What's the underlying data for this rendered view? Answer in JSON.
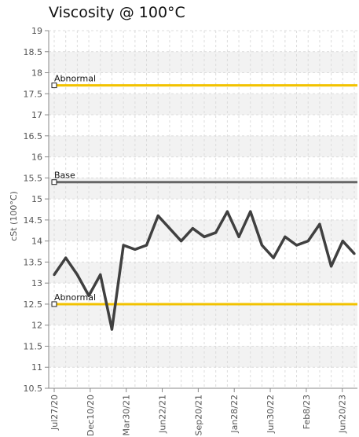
{
  "chart_data": {
    "type": "line",
    "title": "Viscosity @ 100°C",
    "xlabel": "",
    "ylabel": "cSt (100°C)",
    "ylim": [
      10.5,
      19
    ],
    "yticks": [
      "10.5",
      "11",
      "11.5",
      "12",
      "12.5",
      "13",
      "13.5",
      "14",
      "14.5",
      "15",
      "15.5",
      "16",
      "16.5",
      "17",
      "17.5",
      "18",
      "18.5",
      "19"
    ],
    "xtick_labels": [
      "Jul27/20",
      "Dec10/20",
      "Mar30/21",
      "Jun22/21",
      "Sep20/21",
      "Jan28/22",
      "Jun30/22",
      "Feb8/23",
      "Jun20/23"
    ],
    "grid": true,
    "reference_lines": [
      {
        "label": "Abnormal",
        "value": 17.7,
        "color": "#f2c200"
      },
      {
        "label": "Base",
        "value": 15.4,
        "color": "#666666"
      },
      {
        "label": "Abnormal",
        "value": 12.5,
        "color": "#f2c200"
      }
    ],
    "series": [
      {
        "color": "#404040",
        "values": [
          13.2,
          13.6,
          13.2,
          12.7,
          13.2,
          11.9,
          13.9,
          13.8,
          13.9,
          14.6,
          14.3,
          14.0,
          14.3,
          14.1,
          14.2,
          14.7,
          14.1,
          14.7,
          13.9,
          13.6,
          14.1,
          13.9,
          14.0,
          14.4,
          13.4,
          14.0,
          13.7
        ]
      }
    ]
  }
}
